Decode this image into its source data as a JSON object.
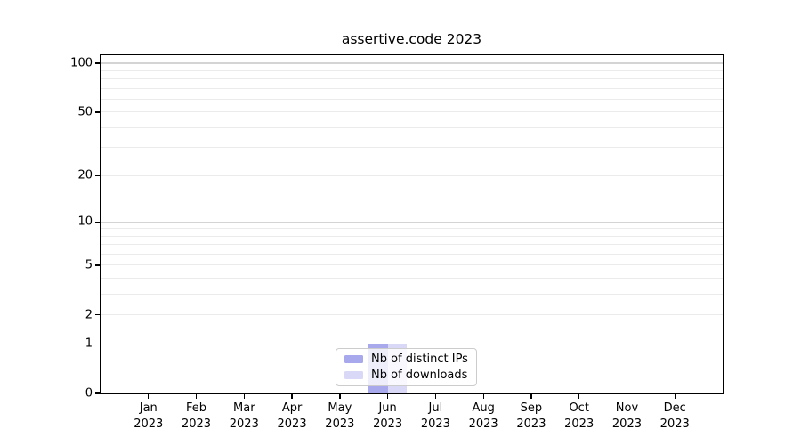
{
  "figure": {
    "background": "#ffffff"
  },
  "chart_data": {
    "type": "bar",
    "title": "assertive.code 2023",
    "categories": [
      "Jan 2023",
      "Feb 2023",
      "Mar 2023",
      "Apr 2023",
      "May 2023",
      "Jun 2023",
      "Jul 2023",
      "Aug 2023",
      "Sep 2023",
      "Oct 2023",
      "Nov 2023",
      "Dec 2023"
    ],
    "series": [
      {
        "name": "Nb of distinct IPs",
        "color": "#a8a8ec",
        "values": [
          0,
          0,
          0,
          0,
          0,
          1,
          0,
          0,
          0,
          0,
          0,
          0
        ]
      },
      {
        "name": "Nb of downloads",
        "color": "#d9d9f7",
        "values": [
          0,
          0,
          0,
          0,
          0,
          1,
          0,
          0,
          0,
          0,
          0,
          0
        ]
      }
    ],
    "xlabel": "",
    "ylabel": "",
    "yscale": "log1p",
    "ylim": [
      0,
      112
    ],
    "yticks": [
      0,
      1,
      2,
      5,
      10,
      20,
      50,
      100
    ],
    "grid": {
      "major": [
        1,
        10,
        100
      ],
      "minor": [
        2,
        3,
        4,
        5,
        6,
        7,
        8,
        9,
        20,
        30,
        40,
        50,
        60,
        70,
        80,
        90
      ]
    },
    "legend": {
      "position": "lower center",
      "entries": [
        "Nb of distinct IPs",
        "Nb of downloads"
      ]
    },
    "colors": {
      "axis": "#000000",
      "grid_major": "#d4d4d4",
      "grid_minor": "#ebebeb",
      "legend_border": "#cccccc",
      "text": "#000000"
    }
  }
}
